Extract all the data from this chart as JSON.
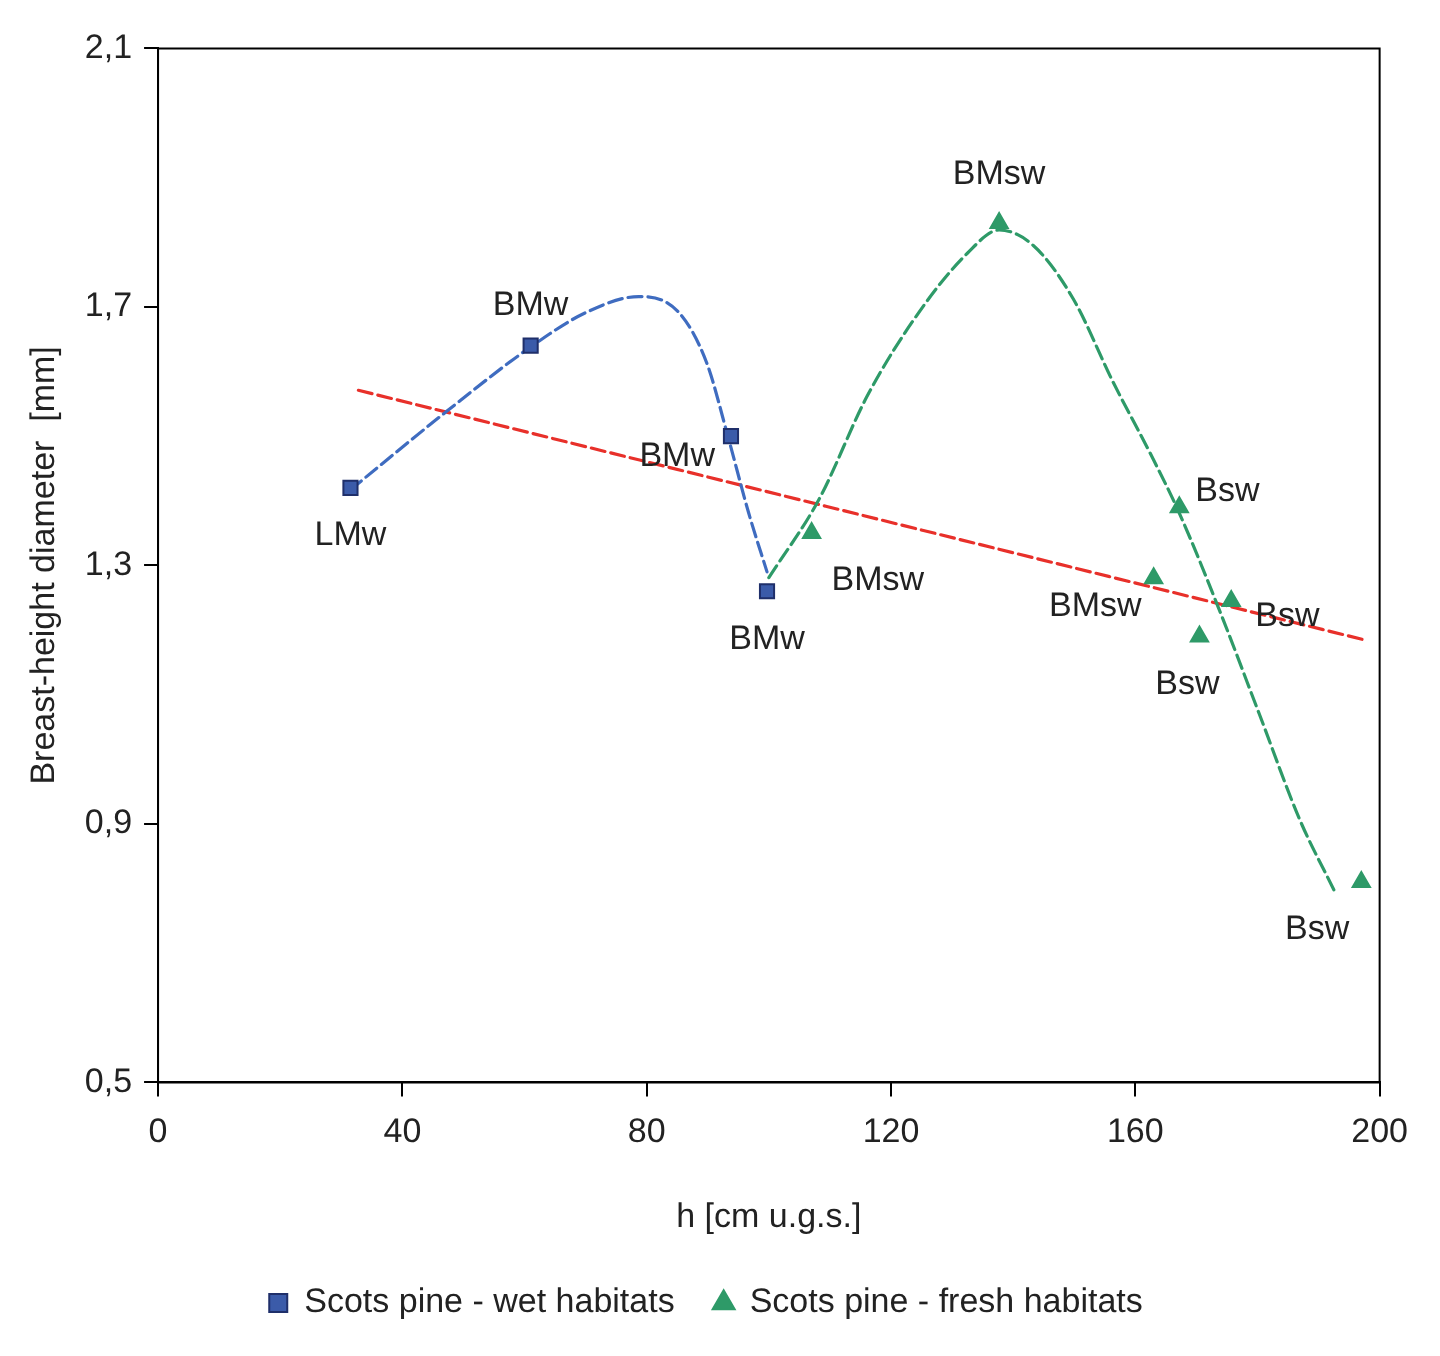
{
  "chart_data": {
    "type": "scatter",
    "xlabel": "h [cm u.g.s.]",
    "ylabel": "Breast-height diameter  [mm]",
    "xlim": [
      0,
      200
    ],
    "xticks": [
      0,
      40,
      80,
      120,
      160,
      200
    ],
    "ylim": [
      0.5,
      2.1
    ],
    "yticks": [
      {
        "value": 0.5,
        "label": "0,5"
      },
      {
        "value": 0.9,
        "label": "0,9"
      },
      {
        "value": 1.3,
        "label": "1,3"
      },
      {
        "value": 1.7,
        "label": "1,7"
      },
      {
        "value": 2.1,
        "label": "2,1"
      }
    ],
    "grid": false,
    "legend": "bottom",
    "series": [
      {
        "name": "Scots pine - wet habitats",
        "type": "scatter",
        "marker": "square",
        "color": "#3b5ba9",
        "x": [
          31.5,
          61,
          93.8,
          99.7
        ],
        "values": [
          1.42,
          1.64,
          1.5,
          1.26
        ]
      },
      {
        "name": "Scots pine - fresh habitats",
        "type": "scatter",
        "marker": "triangle",
        "color": "#2e9a68",
        "x": [
          107,
          137.7,
          163,
          167.2,
          170.5,
          175.7,
          197
        ],
        "values": [
          1.35,
          1.83,
          1.28,
          1.39,
          1.19,
          1.245,
          0.81
        ]
      },
      {
        "type": "line",
        "marker": "none",
        "line_style": "dashed",
        "color": "#3f6cc0",
        "x": [
          31.5,
          47.2,
          61,
          70.2,
          78.7,
          85.2,
          89.8,
          93.4,
          96.7,
          99.7
        ],
        "values": [
          1.417,
          1.538,
          1.638,
          1.692,
          1.716,
          1.692,
          1.614,
          1.496,
          1.381,
          1.29
        ]
      },
      {
        "type": "line",
        "marker": "none",
        "line_style": "dashed",
        "color": "#2e9a68",
        "x": [
          100,
          108.2,
          116.1,
          124.6,
          132.5,
          137.7,
          143.3,
          149.8,
          156.4,
          163,
          167.2,
          173.8,
          180.3,
          186.9,
          192.5
        ],
        "values": [
          1.281,
          1.402,
          1.562,
          1.692,
          1.783,
          1.819,
          1.795,
          1.713,
          1.583,
          1.463,
          1.381,
          1.23,
          1.07,
          0.907,
          0.798
        ]
      },
      {
        "type": "line",
        "marker": "none",
        "line_style": "dashed",
        "color": "#e8302a",
        "x": [
          32.8,
          197.4
        ],
        "values": [
          1.571,
          1.185
        ]
      }
    ],
    "annotations": [
      {
        "text": "LMw",
        "x": 31.5,
        "y": 1.42
      },
      {
        "text": "BMw",
        "x": 61,
        "y": 1.64
      },
      {
        "text": "BMw",
        "x": 93.8,
        "y": 1.5
      },
      {
        "text": "BMw",
        "x": 99.7,
        "y": 1.26
      },
      {
        "text": "BMsw",
        "x": 107,
        "y": 1.35
      },
      {
        "text": "BMsw",
        "x": 137.7,
        "y": 1.83
      },
      {
        "text": "BMsw",
        "x": 163,
        "y": 1.28
      },
      {
        "text": "Bsw",
        "x": 167.2,
        "y": 1.39
      },
      {
        "text": "Bsw",
        "x": 170.5,
        "y": 1.19
      },
      {
        "text": "Bsw",
        "x": 175.7,
        "y": 1.245
      },
      {
        "text": "Bsw",
        "x": 197,
        "y": 0.81
      }
    ]
  }
}
